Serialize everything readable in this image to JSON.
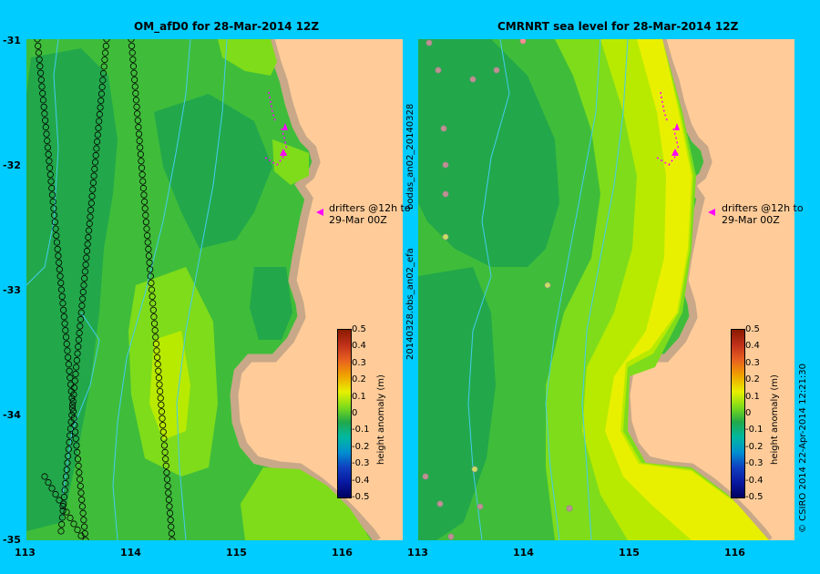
{
  "colors": {
    "background": "#00ccff",
    "land": "#ffcc99",
    "coast": "#c8a888",
    "drifter": "#ff00ff",
    "sea_dark": "#22a84a",
    "sea_mid": "#3fbd3a",
    "sea_light": "#7fdc1a",
    "sea_lime": "#b8ea00",
    "sea_yellow": "#e8f000",
    "contour": "#44ccee"
  },
  "left_panel": {
    "title": "OM_afD0 for 28-Mar-2014 12Z",
    "annotation_line1": "drifters @12h to",
    "annotation_line2": "29-Mar 00Z"
  },
  "right_panel": {
    "title": "CMRNRT sea level  for 28-Mar-2014 12Z",
    "annotation_line1": "drifters @12h to",
    "annotation_line2": "29-Mar 00Z"
  },
  "axes": {
    "y_ticks": [
      "-31",
      "-32",
      "-33",
      "-34",
      "-35"
    ],
    "x_ticks_left": [
      "113",
      "114",
      "115",
      "116"
    ],
    "x_ticks_right": [
      "113",
      "114",
      "115",
      "116"
    ]
  },
  "colorbar": {
    "title": "height anomaly (m)",
    "ticks": [
      "0.5",
      "0.4",
      "0.3",
      "0.2",
      "0.1",
      "0",
      "-0.1",
      "-0.2",
      "-0.3",
      "-0.4",
      "-0.5"
    ]
  },
  "side_labels": {
    "center_top": "bodas_an02_20140328",
    "center_bottom": "20140328.obs_an02_efa",
    "right": "© CSIRO 2014   22-Apr-2014 12:21:30"
  }
}
